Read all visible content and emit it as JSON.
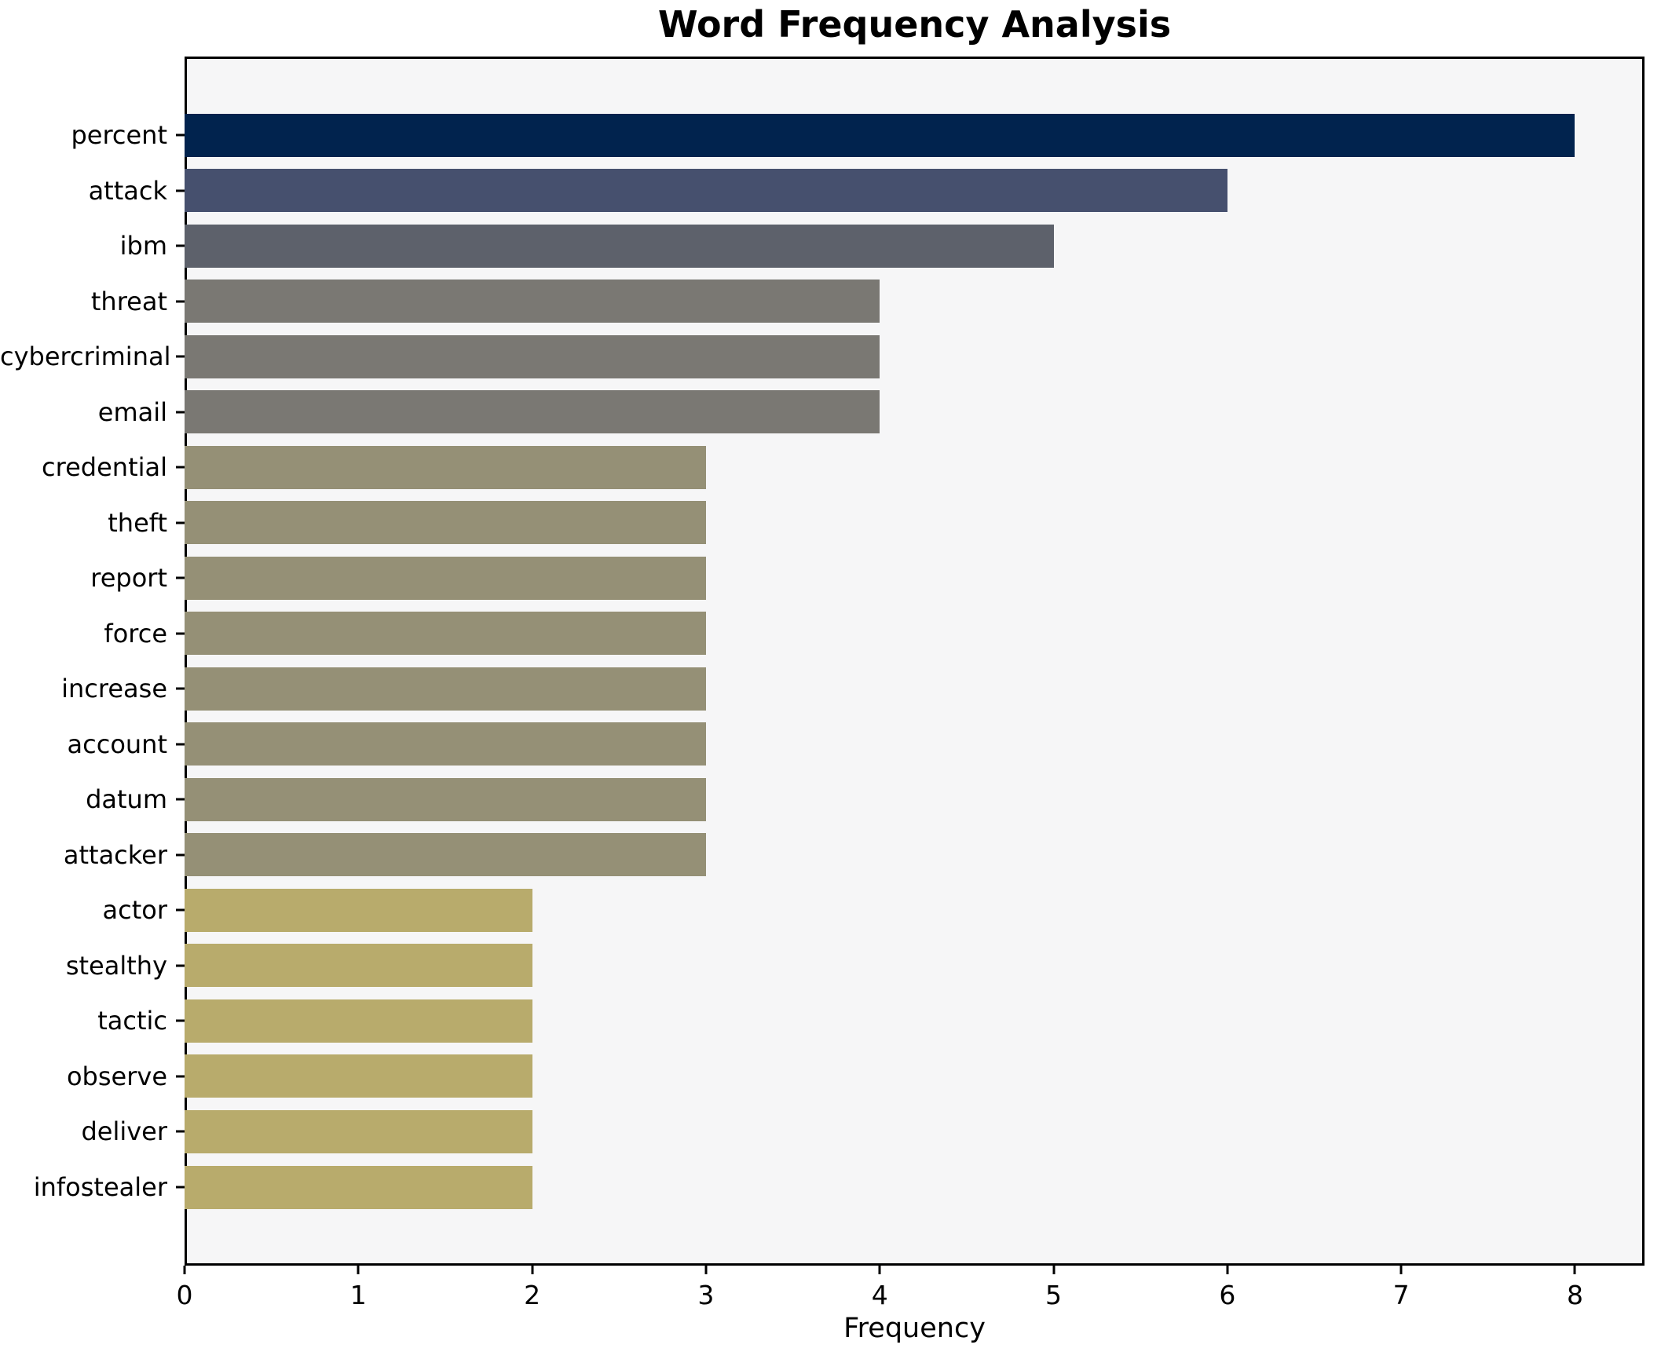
{
  "title": "Word Frequency Analysis",
  "chart_data": {
    "type": "bar",
    "orientation": "horizontal",
    "title": "Word Frequency Analysis",
    "xlabel": "Frequency",
    "ylabel": "",
    "categories": [
      "percent",
      "attack",
      "ibm",
      "threat",
      "cybercriminal",
      "email",
      "credential",
      "theft",
      "report",
      "force",
      "increase",
      "account",
      "datum",
      "attacker",
      "actor",
      "stealthy",
      "tactic",
      "observe",
      "deliver",
      "infostealer"
    ],
    "values": [
      8,
      6,
      5,
      4,
      4,
      4,
      3,
      3,
      3,
      3,
      3,
      3,
      3,
      3,
      2,
      2,
      2,
      2,
      2,
      2
    ],
    "xlim": [
      0,
      8.4
    ],
    "x_ticks": [
      "0",
      "1",
      "2",
      "3",
      "4",
      "5",
      "6",
      "7",
      "8"
    ],
    "grid": false,
    "legend": "none",
    "plot_background": "#f6f6f7",
    "figure_background": "#ffffff",
    "frame_color": "#000000",
    "colors_by_value": {
      "8": "#01234e",
      "6": "#46506e",
      "5": "#5d616b",
      "4": "#7a7873",
      "3": "#959076",
      "2": "#b8ab6c"
    }
  }
}
